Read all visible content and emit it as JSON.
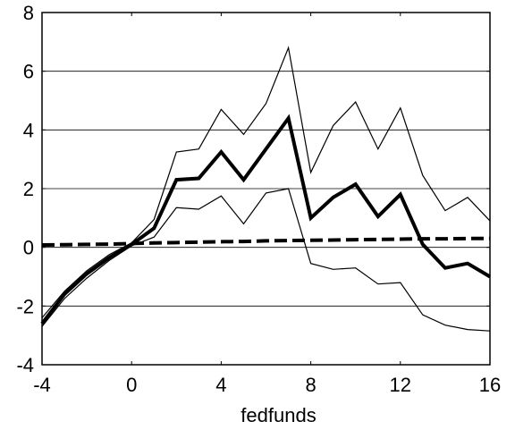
{
  "chart_data": {
    "type": "line",
    "title": "",
    "xlabel": "fedfunds",
    "ylabel": "",
    "xlim": [
      -4,
      16
    ],
    "ylim": [
      -4,
      8
    ],
    "xticks": [
      -4,
      0,
      4,
      8,
      12,
      16
    ],
    "yticks": [
      8,
      6,
      4,
      2,
      0,
      -2,
      -4
    ],
    "grid": "horizontal",
    "x": [
      -4,
      -3,
      -2,
      -1,
      0,
      1,
      2,
      3,
      4,
      5,
      6,
      7,
      8,
      9,
      10,
      11,
      12,
      13,
      14,
      15,
      16
    ],
    "series": [
      {
        "style": "thick-solid",
        "values": [
          -2.6,
          -1.6,
          -0.9,
          -0.35,
          0.1,
          0.65,
          2.3,
          2.35,
          3.25,
          2.3,
          3.35,
          4.4,
          1.0,
          1.7,
          2.15,
          1.05,
          1.8,
          0.1,
          -0.7,
          -0.55,
          -1.0
        ]
      },
      {
        "style": "thin-upper",
        "values": [
          -2.4,
          -1.5,
          -0.8,
          -0.25,
          0.15,
          0.95,
          3.25,
          3.35,
          4.7,
          3.85,
          4.9,
          6.8,
          2.55,
          4.15,
          4.95,
          3.35,
          4.75,
          2.45,
          1.25,
          1.7,
          0.9
        ]
      },
      {
        "style": "thin-lower",
        "values": [
          -2.7,
          -1.75,
          -1.05,
          -0.45,
          0.05,
          0.35,
          1.35,
          1.3,
          1.75,
          0.8,
          1.85,
          2.0,
          -0.55,
          -0.75,
          -0.7,
          -1.25,
          -1.2,
          -2.3,
          -2.65,
          -2.8,
          -2.85
        ]
      },
      {
        "style": "thick-dashed",
        "values": [
          0.08,
          0.09,
          0.1,
          0.11,
          0.13,
          0.15,
          0.16,
          0.18,
          0.19,
          0.2,
          0.22,
          0.23,
          0.24,
          0.25,
          0.26,
          0.27,
          0.28,
          0.29,
          0.29,
          0.3,
          0.3
        ]
      }
    ]
  }
}
